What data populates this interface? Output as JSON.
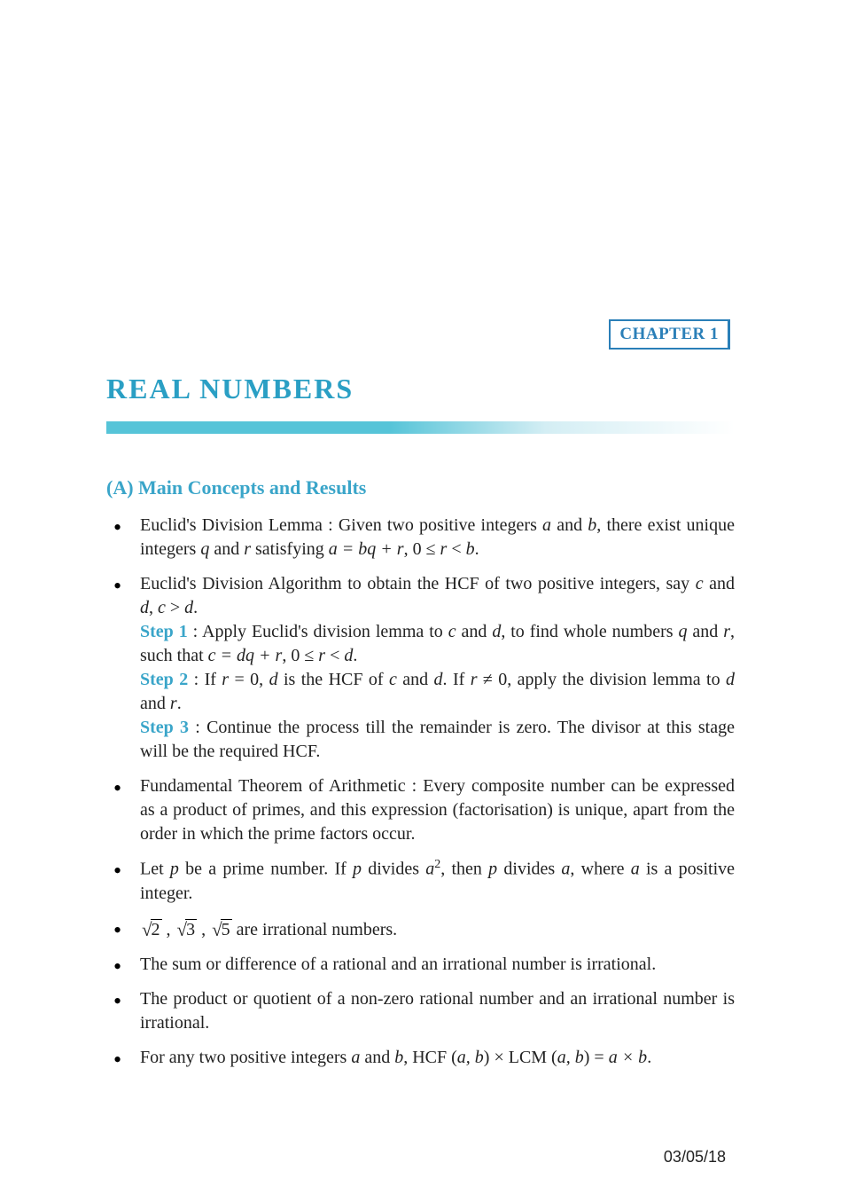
{
  "chapter_badge": "CHAPTER 1",
  "title": "REAL NUMBERS",
  "section_heading": "(A) Main Concepts and Results",
  "bullets": {
    "b1_pre": "Euclid's Division Lemma : Given two positive integers ",
    "b1_a": "a",
    "b1_mid1": " and ",
    "b1_b": "b",
    "b1_mid2": ", there exist unique integers ",
    "b1_q": "q",
    "b1_mid3": " and ",
    "b1_r": "r",
    "b1_mid4": " satisfying ",
    "b1_eq": "a = bq + r",
    "b1_mid5": ", 0 ≤ ",
    "b1_r2": "r",
    "b1_mid6": " < ",
    "b1_b2": "b",
    "b1_end": ".",
    "b2_pre": "Euclid's Division Algorithm to obtain the HCF of two positive integers, say ",
    "b2_c": "c",
    "b2_mid1": " and ",
    "b2_d": "d",
    "b2_mid2": ", ",
    "b2_c2": "c",
    "b2_gt": " > ",
    "b2_d2": "d",
    "b2_end": ".",
    "step1_label": "Step 1",
    "step1_colon": " : ",
    "step1_text1": "Apply Euclid's division lemma to ",
    "step1_c": "c",
    "step1_and1": " and ",
    "step1_d": "d",
    "step1_text2": ", to find whole numbers ",
    "step1_q": "q",
    "step1_and2": " and ",
    "step1_r": "r",
    "step1_text3": ", such that ",
    "step1_eq": "c = dq + r",
    "step1_text4": ", 0 ≤ ",
    "step1_r2": "r",
    "step1_lt": " < ",
    "step1_d2": "d",
    "step1_end": ".",
    "step2_label": "Step 2",
    "step2_colon": " : ",
    "step2_text1": "If ",
    "step2_r": "r",
    "step2_eq0": " = 0, ",
    "step2_d": "d",
    "step2_text2": " is the HCF of ",
    "step2_c": "c",
    "step2_and": " and ",
    "step2_d2": "d",
    "step2_text3": ". If ",
    "step2_r2": "r",
    "step2_neq": " ≠ 0, apply the division lemma to ",
    "step2_d3": "d",
    "step2_and2": " and ",
    "step2_r3": "r",
    "step2_end": ".",
    "step3_label": "Step 3",
    "step3_colon": " : ",
    "step3_text": "Continue the process till the remainder is zero. The divisor at this stage will be the required HCF.",
    "b3": "Fundamental Theorem of Arithmetic : Every composite number can be expressed as a product of primes, and this expression (factorisation) is unique, apart from the order in which the prime factors occur.",
    "b4_pre": "Let ",
    "b4_p": "p",
    "b4_text1": " be a prime number. If ",
    "b4_p2": "p",
    "b4_text2": " divides ",
    "b4_a": "a",
    "b4_sq": "2",
    "b4_text3": ", then ",
    "b4_p3": "p",
    "b4_text4": " divides ",
    "b4_a2": "a",
    "b4_text5": ", where ",
    "b4_a3": "a",
    "b4_text6": " is a positive integer.",
    "b5_r1": "2",
    "b5_c1": " , ",
    "b5_r2": "3",
    "b5_c2": " , ",
    "b5_r3": "5",
    "b5_text": " are irrational numbers.",
    "b6": "The sum or difference of a rational and an irrational number is irrational.",
    "b7": "The product or quotient of a non-zero rational number and an irrational number is irrational.",
    "b8_pre": "For any two positive integers ",
    "b8_a": "a",
    "b8_and": " and ",
    "b8_b": "b",
    "b8_text1": ", HCF (",
    "b8_ab1": "a, b",
    "b8_text2": ") × LCM (",
    "b8_ab2": "a, b",
    "b8_text3": ") = ",
    "b8_eq": "a × b",
    "b8_end": "."
  },
  "footer_date": "03/05/18",
  "colors": {
    "heading_blue": "#3aa5c9",
    "title_blue": "#2a9fc4",
    "badge_blue": "#2a7fb8",
    "bar_gradient_start": "#56c4d8",
    "text": "#222222",
    "background": "#ffffff"
  },
  "typography": {
    "title_fontsize": 32,
    "section_fontsize": 22,
    "body_fontsize": 20,
    "badge_fontsize": 19,
    "footer_fontsize": 18
  }
}
